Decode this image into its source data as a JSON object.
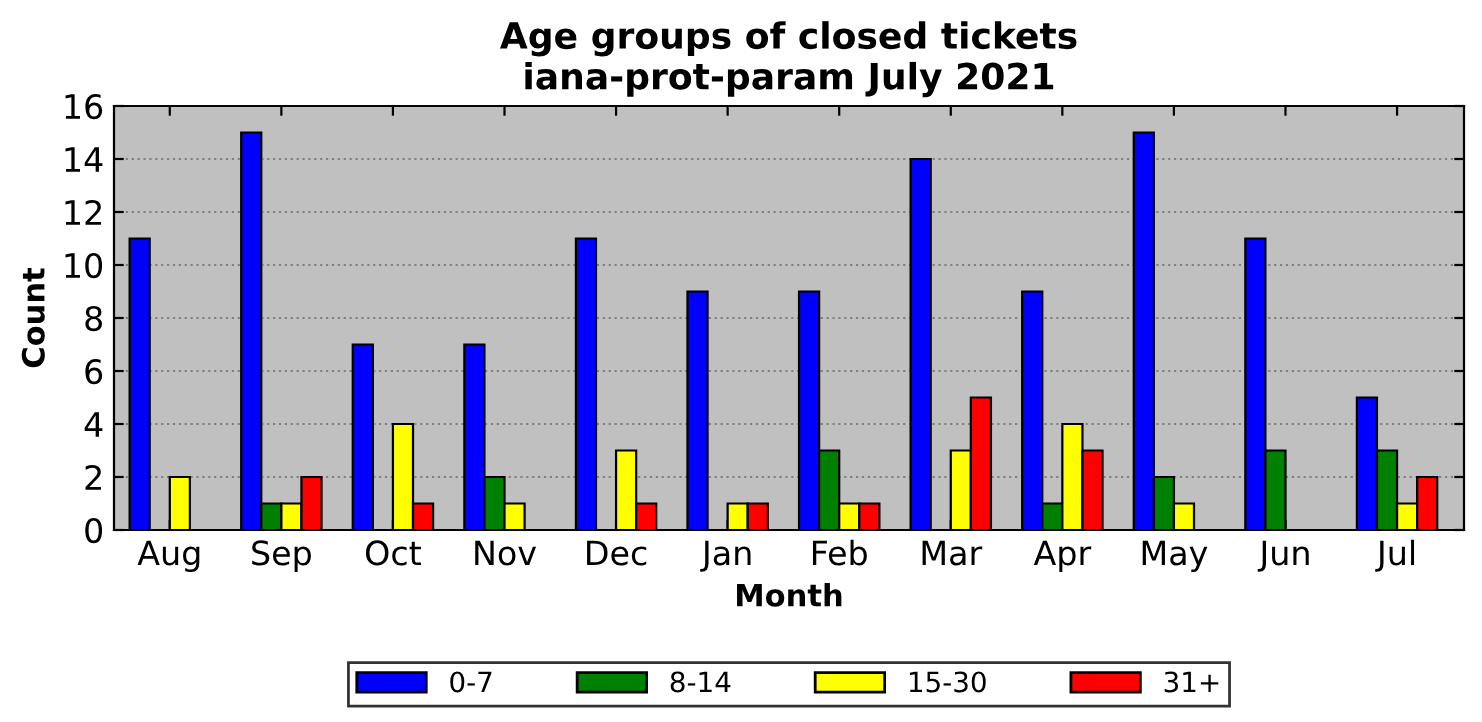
{
  "chart_data": {
    "type": "bar",
    "title": "Age groups of closed tickets\niana-prot-param July 2021",
    "xlabel": "Month",
    "ylabel": "Count",
    "categories": [
      "Aug",
      "Sep",
      "Oct",
      "Nov",
      "Dec",
      "Jan",
      "Feb",
      "Mar",
      "Apr",
      "May",
      "Jun",
      "Jul"
    ],
    "series": [
      {
        "name": "0-7",
        "color": "#0000ff",
        "values": [
          11,
          15,
          7,
          7,
          11,
          9,
          9,
          14,
          9,
          15,
          11,
          5
        ]
      },
      {
        "name": "8-14",
        "color": "#008000",
        "values": [
          0,
          1,
          0,
          2,
          0,
          0,
          3,
          0,
          1,
          2,
          3,
          3
        ]
      },
      {
        "name": "15-30",
        "color": "#ffff00",
        "values": [
          2,
          1,
          4,
          1,
          3,
          1,
          1,
          3,
          4,
          1,
          0,
          1
        ]
      },
      {
        "name": "31+",
        "color": "#ff0000",
        "values": [
          0,
          2,
          1,
          0,
          1,
          1,
          1,
          5,
          3,
          0,
          0,
          2
        ]
      }
    ],
    "ylim": [
      0,
      16
    ],
    "yticks": [
      0,
      2,
      4,
      6,
      8,
      10,
      12,
      14,
      16
    ],
    "grid": "y",
    "legend": "bottom"
  }
}
